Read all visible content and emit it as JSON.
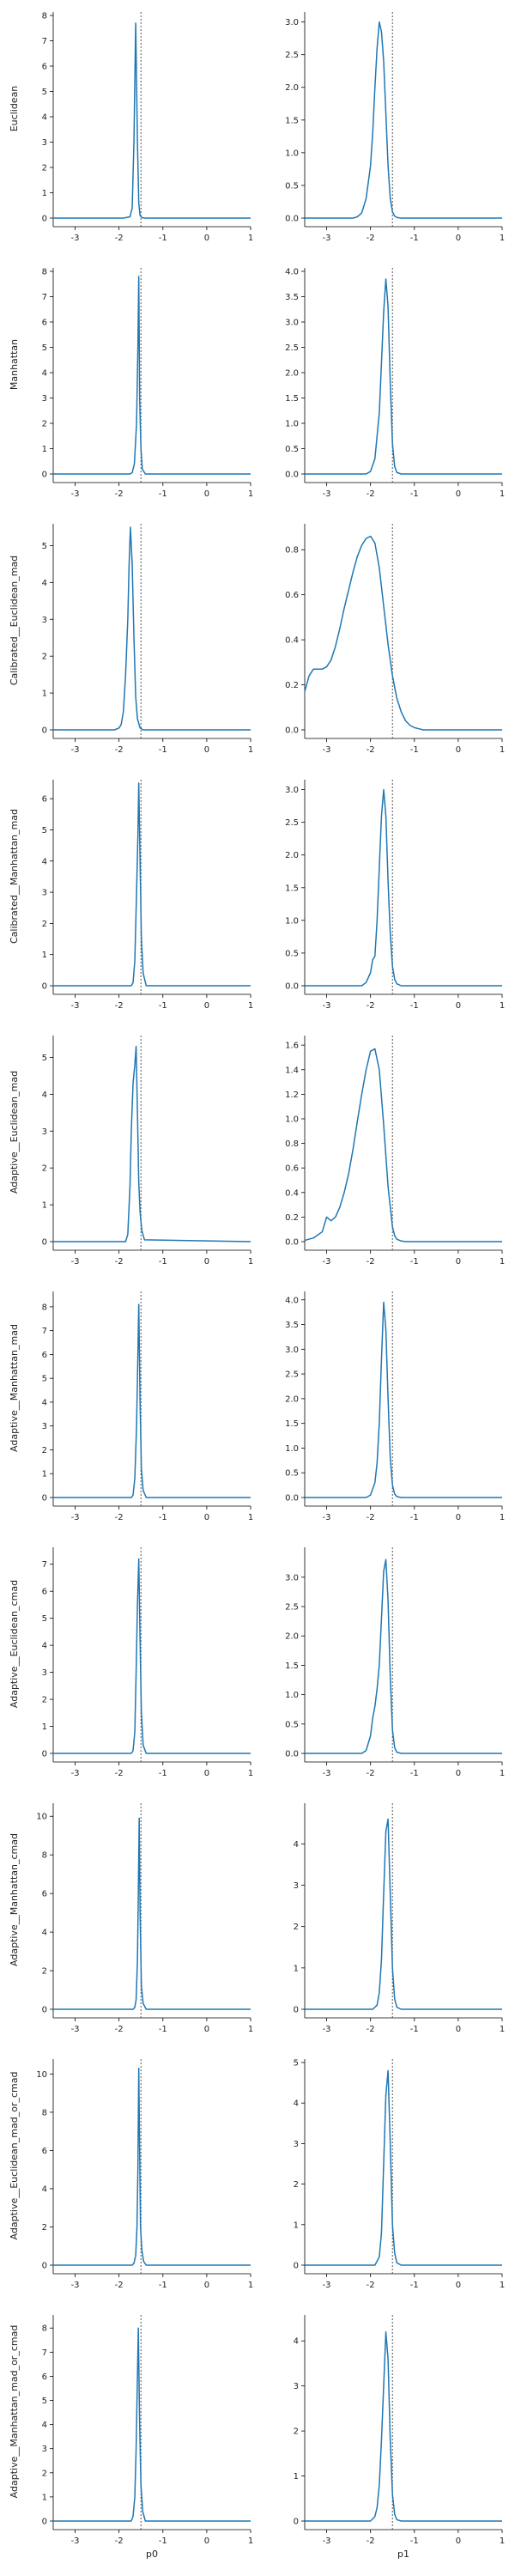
{
  "chart_data": {
    "type": "line",
    "reference_x": -1.5,
    "x_ticks": [
      -3,
      -2,
      -1,
      0,
      1
    ],
    "xlim": [
      -3.5,
      1.0
    ],
    "columns": [
      {
        "xlabel": "p0"
      },
      {
        "xlabel": "p1"
      }
    ],
    "rows": [
      {
        "ylabel": "Euclidean",
        "panels": [
          {
            "ylim": [
              0,
              8
            ],
            "yticks": [
              0,
              1,
              2,
              3,
              4,
              5,
              6,
              7,
              8
            ],
            "x": [
              -3.5,
              -1.9,
              -1.75,
              -1.7,
              -1.66,
              -1.62,
              -1.58,
              -1.55,
              -1.52,
              -1.48,
              -1.4,
              1.0
            ],
            "y": [
              0,
              0,
              0.05,
              0.4,
              3.0,
              7.7,
              3.0,
              0.6,
              0.1,
              0.02,
              0,
              0
            ]
          },
          {
            "ylim": [
              0,
              3.1
            ],
            "yticks": [
              "0.0",
              "0.5",
              "1.0",
              "1.5",
              "2.0",
              "2.5",
              "3.0"
            ],
            "x": [
              -3.5,
              -2.4,
              -2.3,
              -2.2,
              -2.1,
              -2.0,
              -1.95,
              -1.9,
              -1.85,
              -1.8,
              -1.75,
              -1.7,
              -1.65,
              -1.6,
              -1.55,
              -1.5,
              -1.45,
              -1.4,
              -1.3,
              1.0
            ],
            "y": [
              0,
              0,
              0.02,
              0.08,
              0.3,
              0.8,
              1.3,
              2.0,
              2.6,
              3.0,
              2.85,
              2.4,
              1.6,
              0.8,
              0.3,
              0.1,
              0.03,
              0.01,
              0,
              0
            ]
          }
        ]
      },
      {
        "ylabel": "Manhattan",
        "panels": [
          {
            "ylim": [
              0,
              8
            ],
            "yticks": [
              0,
              1,
              2,
              3,
              4,
              5,
              6,
              7,
              8
            ],
            "x": [
              -3.5,
              -1.75,
              -1.7,
              -1.65,
              -1.6,
              -1.57,
              -1.55,
              -1.53,
              -1.5,
              -1.47,
              -1.4,
              1.0
            ],
            "y": [
              0,
              0,
              0.05,
              0.4,
              2.0,
              5.0,
              7.8,
              3.0,
              1.0,
              0.2,
              0,
              0
            ]
          },
          {
            "ylim": [
              0,
              4
            ],
            "yticks": [
              "0.0",
              "0.5",
              "1.0",
              "1.5",
              "2.0",
              "2.5",
              "3.0",
              "3.5",
              "4.0"
            ],
            "x": [
              -3.5,
              -2.1,
              -2.0,
              -1.9,
              -1.8,
              -1.75,
              -1.7,
              -1.65,
              -1.6,
              -1.55,
              -1.5,
              -1.45,
              -1.4,
              -1.3,
              1.0
            ],
            "y": [
              0,
              0,
              0.05,
              0.3,
              1.2,
              2.2,
              3.2,
              3.85,
              3.3,
              1.8,
              0.6,
              0.15,
              0.03,
              0,
              0
            ]
          }
        ]
      },
      {
        "ylabel": "Calibrated__Euclidean_mad",
        "panels": [
          {
            "ylim": [
              0,
              5.5
            ],
            "yticks": [
              0,
              1,
              2,
              3,
              4,
              5
            ],
            "x": [
              -3.5,
              -2.1,
              -2.0,
              -1.95,
              -1.9,
              -1.85,
              -1.8,
              -1.77,
              -1.74,
              -1.7,
              -1.66,
              -1.62,
              -1.58,
              -1.52,
              -1.45,
              1.0
            ],
            "y": [
              0,
              0,
              0.05,
              0.15,
              0.5,
              1.5,
              3.0,
              4.5,
              5.5,
              4.5,
              2.5,
              0.9,
              0.3,
              0.05,
              0,
              0
            ]
          },
          {
            "ylim": [
              0,
              0.9
            ],
            "yticks": [
              "0.0",
              "0.2",
              "0.4",
              "0.6",
              "0.8"
            ],
            "x": [
              -3.5,
              -3.4,
              -3.3,
              -3.2,
              -3.1,
              -3.0,
              -2.9,
              -2.8,
              -2.7,
              -2.6,
              -2.5,
              -2.4,
              -2.3,
              -2.2,
              -2.1,
              -2.0,
              -1.9,
              -1.8,
              -1.7,
              -1.6,
              -1.5,
              -1.4,
              -1.3,
              -1.2,
              -1.1,
              -1.0,
              -0.9,
              -0.8,
              1.0
            ],
            "y": [
              0.17,
              0.24,
              0.27,
              0.27,
              0.27,
              0.28,
              0.31,
              0.37,
              0.45,
              0.54,
              0.62,
              0.7,
              0.77,
              0.82,
              0.85,
              0.86,
              0.83,
              0.72,
              0.55,
              0.38,
              0.24,
              0.14,
              0.08,
              0.04,
              0.02,
              0.01,
              0.005,
              0,
              0
            ]
          }
        ]
      },
      {
        "ylabel": "Calibrated__Manhattan_mad",
        "panels": [
          {
            "ylim": [
              0,
              6.5
            ],
            "yticks": [
              0,
              1,
              2,
              3,
              4,
              5,
              6
            ],
            "x": [
              -3.5,
              -1.72,
              -1.68,
              -1.64,
              -1.6,
              -1.57,
              -1.55,
              -1.52,
              -1.49,
              -1.45,
              -1.38,
              1.0
            ],
            "y": [
              0,
              0,
              0.1,
              0.8,
              3.0,
              4.8,
              6.5,
              4.0,
              1.5,
              0.4,
              0,
              0
            ]
          },
          {
            "ylim": [
              0,
              3.1
            ],
            "yticks": [
              "0.0",
              "0.5",
              "1.0",
              "1.5",
              "2.0",
              "2.5",
              "3.0"
            ],
            "x": [
              -3.5,
              -2.2,
              -2.1,
              -2.0,
              -1.95,
              -1.9,
              -1.85,
              -1.8,
              -1.75,
              -1.7,
              -1.65,
              -1.6,
              -1.55,
              -1.5,
              -1.45,
              -1.4,
              -1.3,
              1.0
            ],
            "y": [
              0,
              0,
              0.05,
              0.2,
              0.4,
              0.45,
              1.0,
              1.8,
              2.6,
              3.0,
              2.6,
              1.6,
              0.8,
              0.3,
              0.1,
              0.03,
              0,
              0
            ]
          }
        ]
      },
      {
        "ylabel": "Adaptive__Euclidean_mad",
        "panels": [
          {
            "ylim": [
              0,
              5.5
            ],
            "yticks": [
              0,
              1,
              2,
              3,
              4,
              5
            ],
            "x": [
              -3.5,
              -1.85,
              -1.8,
              -1.75,
              -1.72,
              -1.68,
              -1.64,
              -1.61,
              -1.58,
              -1.55,
              -1.52,
              -1.48,
              -1.42,
              1.0
            ],
            "y": [
              0,
              0,
              0.2,
              1.5,
              3.0,
              4.3,
              4.8,
              5.3,
              3.5,
              1.6,
              0.8,
              0.3,
              0.05,
              0
            ]
          },
          {
            "ylim": [
              0,
              1.65
            ],
            "yticks": [
              "0.0",
              "0.2",
              "0.4",
              "0.6",
              "0.8",
              "1.0",
              "1.2",
              "1.4",
              "1.6"
            ],
            "x": [
              -3.5,
              -3.3,
              -3.1,
              -3.0,
              -2.9,
              -2.8,
              -2.7,
              -2.6,
              -2.5,
              -2.4,
              -2.3,
              -2.2,
              -2.1,
              -2.0,
              -1.9,
              -1.8,
              -1.7,
              -1.6,
              -1.5,
              -1.45,
              -1.4,
              -1.3,
              -1.2,
              1.0
            ],
            "y": [
              0.01,
              0.03,
              0.08,
              0.2,
              0.17,
              0.2,
              0.28,
              0.4,
              0.55,
              0.75,
              0.98,
              1.2,
              1.4,
              1.55,
              1.57,
              1.4,
              0.95,
              0.45,
              0.12,
              0.05,
              0.02,
              0.005,
              0,
              0
            ]
          }
        ]
      },
      {
        "ylabel": "Adaptive__Manhattan_mad",
        "panels": [
          {
            "ylim": [
              0,
              8.5
            ],
            "yticks": [
              0,
              1,
              2,
              3,
              4,
              5,
              6,
              7,
              8
            ],
            "x": [
              -3.5,
              -1.72,
              -1.68,
              -1.64,
              -1.6,
              -1.57,
              -1.55,
              -1.52,
              -1.49,
              -1.45,
              -1.38,
              1.0
            ],
            "y": [
              0,
              0,
              0.1,
              0.8,
              3.0,
              6.0,
              8.1,
              4.0,
              1.2,
              0.3,
              0,
              0
            ]
          },
          {
            "ylim": [
              0,
              4.1
            ],
            "yticks": [
              "0.0",
              "0.5",
              "1.0",
              "1.5",
              "2.0",
              "2.5",
              "3.0",
              "3.5",
              "4.0"
            ],
            "x": [
              -3.5,
              -2.1,
              -2.0,
              -1.9,
              -1.85,
              -1.8,
              -1.75,
              -1.7,
              -1.65,
              -1.6,
              -1.55,
              -1.5,
              -1.45,
              -1.4,
              -1.3,
              1.0
            ],
            "y": [
              0,
              0,
              0.05,
              0.3,
              0.7,
              1.5,
              2.8,
              3.95,
              3.4,
              2.0,
              0.8,
              0.25,
              0.07,
              0.02,
              0,
              0
            ]
          }
        ]
      },
      {
        "ylabel": "Adaptive__Euclidean_cmad",
        "panels": [
          {
            "ylim": [
              0,
              7.5
            ],
            "yticks": [
              0,
              1,
              2,
              3,
              4,
              5,
              6,
              7
            ],
            "x": [
              -3.5,
              -1.72,
              -1.68,
              -1.64,
              -1.61,
              -1.58,
              -1.55,
              -1.52,
              -1.49,
              -1.45,
              -1.38,
              1.0
            ],
            "y": [
              0,
              0,
              0.1,
              0.8,
              3.0,
              5.5,
              7.2,
              4.2,
              1.5,
              0.3,
              0,
              0
            ]
          },
          {
            "ylim": [
              0,
              3.45
            ],
            "yticks": [
              "0.0",
              "0.5",
              "1.0",
              "1.5",
              "2.0",
              "2.5",
              "3.0"
            ],
            "x": [
              -3.5,
              -2.2,
              -2.1,
              -2.0,
              -1.95,
              -1.9,
              -1.85,
              -1.8,
              -1.75,
              -1.7,
              -1.65,
              -1.6,
              -1.55,
              -1.5,
              -1.45,
              -1.4,
              -1.3,
              1.0
            ],
            "y": [
              0,
              0,
              0.05,
              0.3,
              0.6,
              0.8,
              1.1,
              1.5,
              2.3,
              3.1,
              3.3,
              2.6,
              1.3,
              0.4,
              0.1,
              0.02,
              0,
              0
            ]
          }
        ]
      },
      {
        "ylabel": "Adaptive__Manhattan_cmad",
        "panels": [
          {
            "ylim": [
              0,
              10.5
            ],
            "yticks": [
              0,
              2,
              4,
              6,
              8,
              10
            ],
            "x": [
              -3.5,
              -1.68,
              -1.64,
              -1.61,
              -1.58,
              -1.56,
              -1.54,
              -1.52,
              -1.49,
              -1.45,
              -1.38,
              1.0
            ],
            "y": [
              0,
              0,
              0.1,
              0.5,
              2.5,
              6.0,
              9.9,
              5.0,
              1.2,
              0.3,
              0,
              0
            ]
          },
          {
            "ylim": [
              0,
              4.9
            ],
            "yticks": [
              0,
              1,
              2,
              3,
              4
            ],
            "x": [
              -3.5,
              -1.95,
              -1.85,
              -1.8,
              -1.75,
              -1.7,
              -1.65,
              -1.6,
              -1.55,
              -1.5,
              -1.45,
              -1.4,
              -1.3,
              1.0
            ],
            "y": [
              0,
              0,
              0.1,
              0.4,
              1.2,
              2.8,
              4.3,
              4.6,
              2.8,
              1.0,
              0.25,
              0.05,
              0,
              0
            ]
          }
        ]
      },
      {
        "ylabel": "Adaptive__Euclidean_mad_or_cmad",
        "panels": [
          {
            "ylim": [
              0,
              10.6
            ],
            "yticks": [
              0,
              2,
              4,
              6,
              8,
              10
            ],
            "x": [
              -3.5,
              -1.7,
              -1.66,
              -1.62,
              -1.59,
              -1.57,
              -1.55,
              -1.53,
              -1.51,
              -1.48,
              -1.44,
              -1.38,
              1.0
            ],
            "y": [
              0,
              0,
              0.1,
              0.5,
              2.0,
              5.0,
              10.3,
              6.0,
              2.0,
              0.8,
              0.2,
              0,
              0
            ]
          },
          {
            "ylim": [
              0,
              5.0
            ],
            "yticks": [
              0,
              1,
              2,
              3,
              4,
              5
            ],
            "x": [
              -3.5,
              -1.9,
              -1.8,
              -1.75,
              -1.7,
              -1.65,
              -1.6,
              -1.55,
              -1.5,
              -1.45,
              -1.4,
              -1.3,
              1.0
            ],
            "y": [
              0,
              0,
              0.2,
              0.8,
              2.5,
              4.2,
              4.8,
              3.0,
              1.0,
              0.3,
              0.06,
              0,
              0
            ]
          }
        ]
      },
      {
        "ylabel": "Adaptive__Manhattan_mad_or_cmad",
        "panels": [
          {
            "ylim": [
              0,
              8.4
            ],
            "yticks": [
              0,
              1,
              2,
              3,
              4,
              5,
              6,
              7,
              8
            ],
            "x": [
              -3.5,
              -1.72,
              -1.68,
              -1.64,
              -1.61,
              -1.58,
              -1.56,
              -1.53,
              -1.5,
              -1.46,
              -1.4,
              1.0
            ],
            "y": [
              0,
              0,
              0.2,
              1.0,
              3.0,
              6.0,
              8.0,
              4.0,
              1.5,
              0.4,
              0,
              0
            ]
          },
          {
            "ylim": [
              0,
              4.5
            ],
            "yticks": [
              0,
              1,
              2,
              3,
              4
            ],
            "x": [
              -3.5,
              -2.0,
              -1.9,
              -1.85,
              -1.8,
              -1.75,
              -1.7,
              -1.65,
              -1.6,
              -1.55,
              -1.5,
              -1.45,
              -1.4,
              -1.3,
              1.0
            ],
            "y": [
              0,
              0,
              0.1,
              0.3,
              0.8,
              1.8,
              3.0,
              4.2,
              3.6,
              1.8,
              0.6,
              0.15,
              0.03,
              0,
              0
            ]
          }
        ]
      }
    ]
  }
}
